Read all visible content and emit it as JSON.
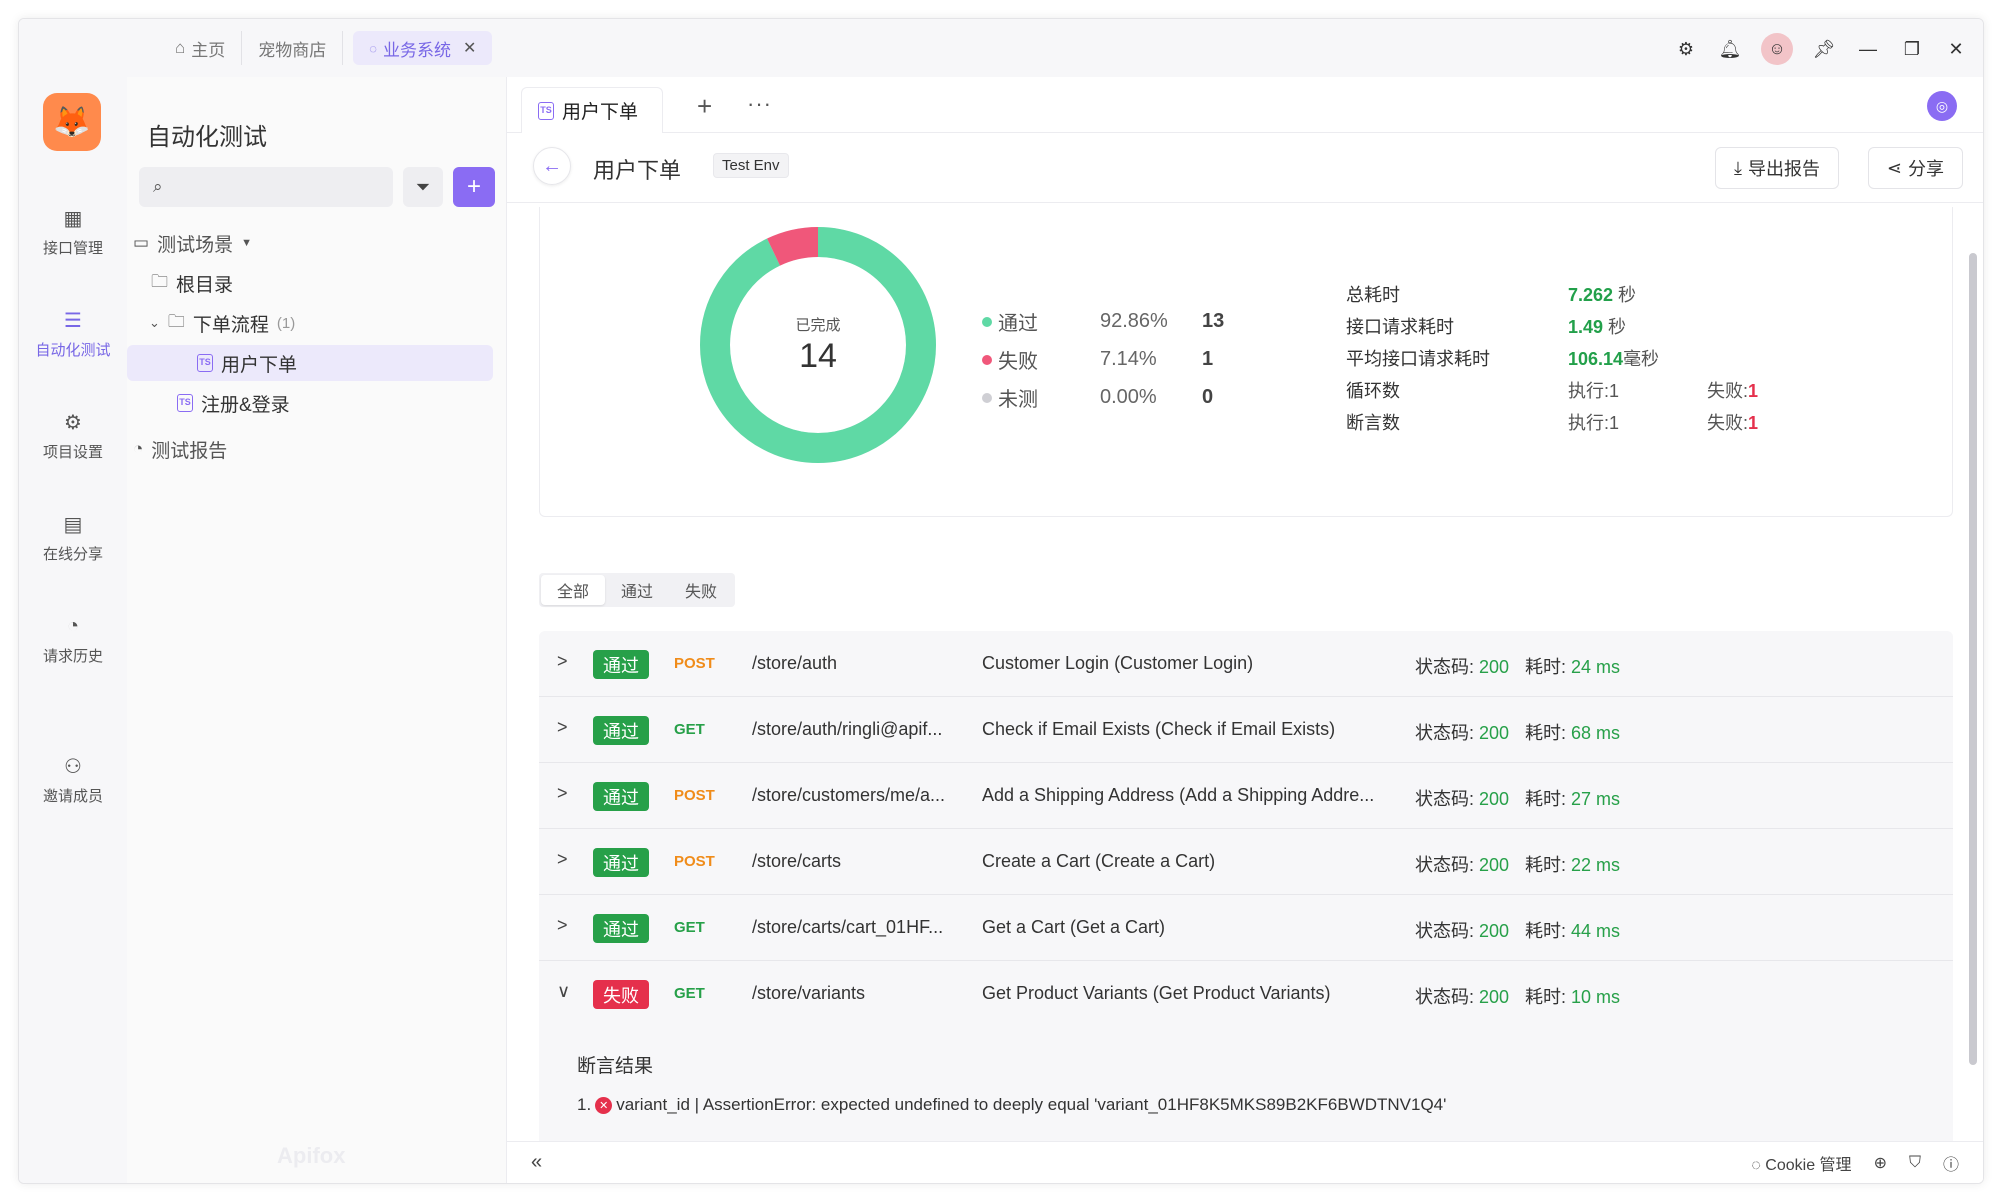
{
  "topbar": {
    "tabs": [
      {
        "label": "主页",
        "icon": "home-icon"
      },
      {
        "label": "宠物商店"
      },
      {
        "label": "业务系统",
        "active": true
      }
    ]
  },
  "rail": {
    "items": [
      {
        "label": "接口管理",
        "icon": "api-icon"
      },
      {
        "label": "自动化测试",
        "icon": "automation-icon",
        "active": true
      },
      {
        "label": "项目设置",
        "icon": "settings-icon"
      },
      {
        "label": "在线分享",
        "icon": "share-doc-icon"
      },
      {
        "label": "请求历史",
        "icon": "history-icon"
      },
      {
        "label": "邀请成员",
        "icon": "invite-user-icon"
      }
    ]
  },
  "tree": {
    "title": "自动化测试",
    "search_placeholder": "",
    "nodes": [
      {
        "label": "测试场景"
      },
      {
        "label": "根目录"
      },
      {
        "label": "下单流程",
        "count": "(1)"
      },
      {
        "label": "用户下单",
        "selected": true
      },
      {
        "label": "注册&登录"
      },
      {
        "label": "测试报告"
      }
    ],
    "file_badge": "TS",
    "watermark": "Apifox"
  },
  "main": {
    "tab_label": "用户下单",
    "title": "用户下单",
    "env": "Test Env",
    "export_label": "导出报告",
    "share_label": "分享"
  },
  "summary": {
    "completed_label": "已完成",
    "completed_value": "14",
    "legend": [
      {
        "name": "通过",
        "pct": "92.86%",
        "num": "13",
        "color": "#5fd9a5"
      },
      {
        "name": "失败",
        "pct": "7.14%",
        "num": "1",
        "color": "#f0577a"
      },
      {
        "name": "未测",
        "pct": "0.00%",
        "num": "0",
        "color": "#cfcfd4"
      }
    ],
    "donut": {
      "pass": 13,
      "fail": 1,
      "untested": 0
    },
    "stats": {
      "total_label": "总耗时",
      "total_value": "7.262",
      "total_unit": " 秒",
      "api_label": "接口请求耗时",
      "api_value": "1.49",
      "api_unit": " 秒",
      "avg_label": "平均接口请求耗时",
      "avg_value": "106.14",
      "avg_unit": "毫秒",
      "loop_label": "循环数",
      "loop_exec": "执行:1",
      "loop_fail_label": "失败:",
      "loop_fail": "1",
      "assert_label": "断言数",
      "assert_exec": "执行:1",
      "assert_fail_label": "失败:",
      "assert_fail": "1"
    }
  },
  "filters": [
    "全部",
    "通过",
    "失败"
  ],
  "results": {
    "status_label": "状态码: ",
    "duration_label": "耗时: ",
    "rows": [
      {
        "result": "通过",
        "method": "POST",
        "path": "/store/auth",
        "desc": "Customer Login (Customer Login)",
        "status": "200",
        "duration": "24 ms"
      },
      {
        "result": "通过",
        "method": "GET",
        "path": "/store/auth/ringli@apif...",
        "desc": "Check if Email Exists (Check if Email Exists)",
        "status": "200",
        "duration": "68 ms"
      },
      {
        "result": "通过",
        "method": "POST",
        "path": "/store/customers/me/a...",
        "desc": "Add a Shipping Address (Add a Shipping Addre...",
        "status": "200",
        "duration": "27 ms"
      },
      {
        "result": "通过",
        "method": "POST",
        "path": "/store/carts",
        "desc": "Create a Cart (Create a Cart)",
        "status": "200",
        "duration": "22 ms"
      },
      {
        "result": "通过",
        "method": "GET",
        "path": "/store/carts/cart_01HF...",
        "desc": "Get a Cart (Get a Cart)",
        "status": "200",
        "duration": "44 ms"
      },
      {
        "result": "失败",
        "method": "GET",
        "path": "/store/variants",
        "desc": "Get Product Variants (Get Product Variants)",
        "status": "200",
        "duration": "10 ms"
      }
    ],
    "assert_title": "断言结果",
    "assert_index": "1.",
    "assert_text": "variant_id | AssertionError: expected undefined to deeply equal 'variant_01HF8K5MKS89B2KF6BWDTNV1Q4'"
  },
  "footer": {
    "cookie_label": "Cookie 管理"
  }
}
